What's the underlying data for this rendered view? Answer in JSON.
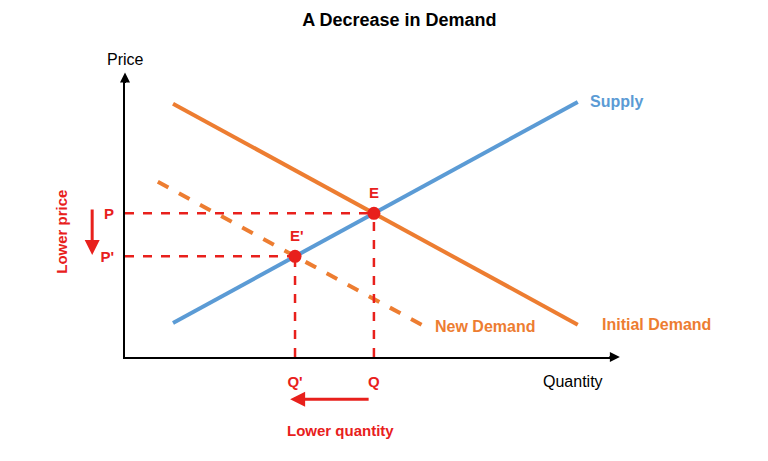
{
  "chart_data": {
    "type": "line",
    "title": "A Decrease in Demand",
    "x_label": "Quantity",
    "y_label": "Price",
    "xlim": [
      0,
      100
    ],
    "ylim": [
      0,
      100
    ],
    "xticks": [
      {
        "value": 34.7,
        "label": "Q'"
      },
      {
        "value": 50.8,
        "label": "Q"
      }
    ],
    "yticks": [
      {
        "value": 36.1,
        "label": "P'"
      },
      {
        "value": 51.5,
        "label": "P"
      }
    ],
    "grid": false,
    "series": [
      {
        "name": "Supply",
        "color": "#5b9bd5",
        "line_style": "solid",
        "x": [
          9.8,
          92.4
        ],
        "values": [
          12.2,
          91.4
        ]
      },
      {
        "name": "Initial Demand",
        "color": "#ed7d31",
        "line_style": "solid",
        "x": [
          9.8,
          92.4
        ],
        "values": [
          90.8,
          11.6
        ]
      },
      {
        "name": "New Demand",
        "color": "#ed7d31",
        "line_style": "dashed",
        "x": [
          6.7,
          61.2
        ],
        "values": [
          62.8,
          10.9
        ]
      }
    ],
    "points": [
      {
        "label": "E",
        "x": 50.8,
        "y": 51.5
      },
      {
        "label": "E'",
        "x": 34.7,
        "y": 36.1
      }
    ],
    "annotations": [
      "Lower price",
      "Lower quantity"
    ]
  }
}
